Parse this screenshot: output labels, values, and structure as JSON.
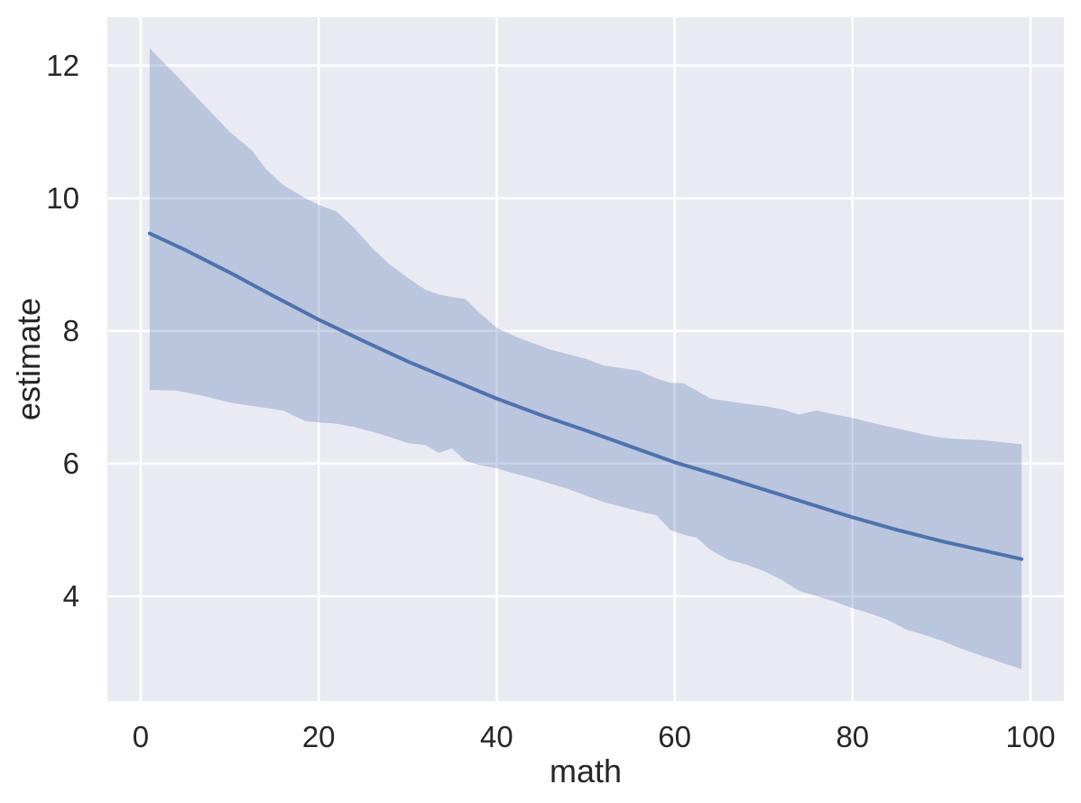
{
  "colors": {
    "figure_bg": "#ffffff",
    "plot_bg": "#eaeaf2",
    "grid": "#ffffff",
    "line": "#4c72b0",
    "band": "rgba(76,114,176,0.30)",
    "text": "#262626"
  },
  "chart_data": {
    "type": "line",
    "title": "",
    "xlabel": "math",
    "ylabel": "estimate",
    "xlim": [
      -3.75,
      103.75
    ],
    "ylim": [
      2.42,
      12.73
    ],
    "xticks": [
      0,
      20,
      40,
      60,
      80,
      100
    ],
    "yticks": [
      4,
      6,
      8,
      10,
      12
    ],
    "grid": true,
    "legend": false,
    "series": [
      {
        "name": "estimate-fit-line",
        "x": [
          1,
          5,
          10,
          15,
          20,
          25,
          30,
          35,
          40,
          45,
          50,
          55,
          60,
          65,
          70,
          75,
          80,
          85,
          90,
          95,
          99
        ],
        "y": [
          9.47,
          9.22,
          8.88,
          8.52,
          8.17,
          7.85,
          7.54,
          7.26,
          6.98,
          6.73,
          6.5,
          6.26,
          6.02,
          5.82,
          5.61,
          5.4,
          5.19,
          5.0,
          4.83,
          4.68,
          4.56
        ]
      }
    ],
    "band": {
      "name": "confidence-interval",
      "x": [
        1,
        4,
        7,
        10,
        12.5,
        14,
        16,
        18.5,
        20,
        22,
        24,
        26,
        28,
        30,
        32,
        33.5,
        35,
        36.5,
        38,
        40,
        42,
        44,
        46,
        48,
        50,
        52,
        54,
        56,
        58,
        59.5,
        61,
        62.5,
        64,
        66,
        68,
        70,
        72,
        74,
        76,
        78,
        80,
        82,
        84,
        86,
        88,
        90,
        92,
        95,
        97,
        99
      ],
      "upper": [
        12.26,
        11.85,
        11.42,
        11.0,
        10.72,
        10.45,
        10.2,
        10.0,
        9.9,
        9.8,
        9.55,
        9.25,
        9.0,
        8.8,
        8.62,
        8.55,
        8.51,
        8.48,
        8.28,
        8.05,
        7.92,
        7.82,
        7.72,
        7.65,
        7.58,
        7.48,
        7.44,
        7.4,
        7.28,
        7.22,
        7.21,
        7.1,
        6.98,
        6.94,
        6.9,
        6.87,
        6.82,
        6.74,
        6.8,
        6.74,
        6.69,
        6.62,
        6.56,
        6.5,
        6.44,
        6.39,
        6.37,
        6.35,
        6.32,
        6.29
      ],
      "lower": [
        7.11,
        7.1,
        7.02,
        6.92,
        6.87,
        6.84,
        6.8,
        6.64,
        6.62,
        6.6,
        6.55,
        6.48,
        6.4,
        6.31,
        6.28,
        6.16,
        6.23,
        6.04,
        5.98,
        5.93,
        5.85,
        5.78,
        5.7,
        5.62,
        5.52,
        5.42,
        5.35,
        5.28,
        5.22,
        5.0,
        4.93,
        4.88,
        4.7,
        4.55,
        4.48,
        4.38,
        4.25,
        4.08,
        4.0,
        3.92,
        3.82,
        3.74,
        3.64,
        3.5,
        3.42,
        3.33,
        3.22,
        3.08,
        2.99,
        2.9
      ]
    }
  }
}
